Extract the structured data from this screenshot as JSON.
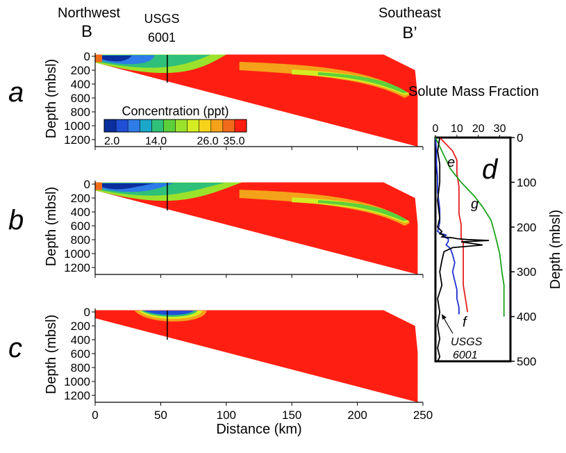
{
  "header": {
    "left_direction": "Northwest",
    "left_section": "B",
    "well_name": "USGS",
    "well_number": "6001",
    "right_direction": "Southeast",
    "right_section": "B’"
  },
  "chart_data": [
    {
      "type": "heatmap",
      "panel": "a",
      "ylabel": "Depth (mbsl)",
      "xlabel": "",
      "x_ticks": [],
      "y_ticks": [
        "0",
        "200",
        "400",
        "600",
        "800",
        "1000",
        "1200"
      ],
      "ylim": [
        1300,
        -50
      ],
      "xlim": [
        0,
        250
      ],
      "well_x": 55,
      "well_depth": 380,
      "colorbar": {
        "title": "Concentration (ppt)",
        "tick_labels": [
          "2.0",
          "14.0",
          "26.0",
          "35.0"
        ],
        "range": [
          2.0,
          35.0
        ],
        "colors": [
          "#0a2f9c",
          "#1f4fd6",
          "#2f7be8",
          "#1aa7c9",
          "#2fc07a",
          "#5cd03a",
          "#9be22c",
          "#d4ec22",
          "#f6d21a",
          "#f4a21a",
          "#f06a1a",
          "#ff1f12"
        ]
      }
    },
    {
      "type": "heatmap",
      "panel": "b",
      "ylabel": "Depth (mbsl)",
      "xlabel": "",
      "x_ticks": [],
      "y_ticks": [
        "0",
        "200",
        "400",
        "600",
        "800",
        "1000",
        "1200"
      ],
      "ylim": [
        1300,
        -50
      ],
      "xlim": [
        0,
        250
      ],
      "well_x": 55,
      "well_depth": 380
    },
    {
      "type": "heatmap",
      "panel": "c",
      "ylabel": "Depth (mbsl)",
      "xlabel": "Distance (km)",
      "x_ticks": [
        "0",
        "50",
        "100",
        "150",
        "200",
        "250"
      ],
      "y_ticks": [
        "0",
        "200",
        "400",
        "600",
        "800",
        "1000",
        "1200"
      ],
      "ylim": [
        1300,
        -50
      ],
      "xlim": [
        0,
        250
      ],
      "well_x": 55,
      "well_depth": 400
    },
    {
      "type": "line",
      "panel": "d",
      "title": "Solute Mass Fraction",
      "ylabel": "Depth (mbsl)",
      "xlim": [
        0,
        35
      ],
      "ylim": [
        500,
        0
      ],
      "x_ticks": [
        "0",
        "10",
        "20",
        "30"
      ],
      "y_ticks": [
        "0",
        "100",
        "200",
        "300",
        "400",
        "500"
      ],
      "series": [
        {
          "name": "e",
          "color": "#e41e1e",
          "x": [
            2,
            4,
            6,
            8,
            9,
            10,
            10,
            11,
            11,
            11,
            12,
            12,
            12,
            12,
            13,
            13,
            13,
            13,
            13,
            14,
            15
          ],
          "y": [
            0,
            10,
            20,
            30,
            40,
            50,
            80,
            110,
            140,
            170,
            195,
            205,
            215,
            225,
            235,
            250,
            270,
            300,
            330,
            360,
            390
          ]
        },
        {
          "name": "f",
          "color": "#1b2fd0",
          "x": [
            0,
            0.5,
            0.5,
            1,
            1,
            2,
            2,
            1,
            3,
            5,
            4,
            6,
            6,
            5,
            7,
            8,
            9,
            8,
            9,
            10,
            10,
            11,
            11
          ],
          "y": [
            0,
            30,
            60,
            90,
            120,
            160,
            190,
            210,
            215,
            218,
            222,
            226,
            232,
            240,
            248,
            262,
            280,
            300,
            320,
            340,
            360,
            380,
            395
          ]
        },
        {
          "name": "g",
          "color": "#19a319",
          "x": [
            0,
            2,
            4,
            7,
            12,
            18,
            22,
            26,
            28,
            30,
            31,
            32,
            32,
            32
          ],
          "y": [
            0,
            20,
            40,
            70,
            100,
            130,
            155,
            185,
            220,
            260,
            300,
            330,
            360,
            400
          ]
        },
        {
          "name": "USGS 6001",
          "color": "#000000",
          "x": [
            2,
            1,
            2,
            2,
            1,
            2,
            1,
            3,
            2,
            4,
            3,
            8,
            10,
            15,
            25,
            12,
            22,
            8,
            4,
            3,
            2,
            3,
            1,
            2,
            1,
            2,
            1,
            2,
            1
          ],
          "y": [
            0,
            30,
            60,
            100,
            140,
            180,
            200,
            210,
            215,
            218,
            222,
            224,
            226,
            228,
            230,
            233,
            240,
            246,
            255,
            275,
            300,
            330,
            360,
            390,
            420,
            450,
            470,
            490,
            500
          ]
        }
      ],
      "labels": [
        "e",
        "f",
        "g",
        "d"
      ],
      "annotation": {
        "line1": "USGS",
        "line2": "6001"
      }
    }
  ]
}
